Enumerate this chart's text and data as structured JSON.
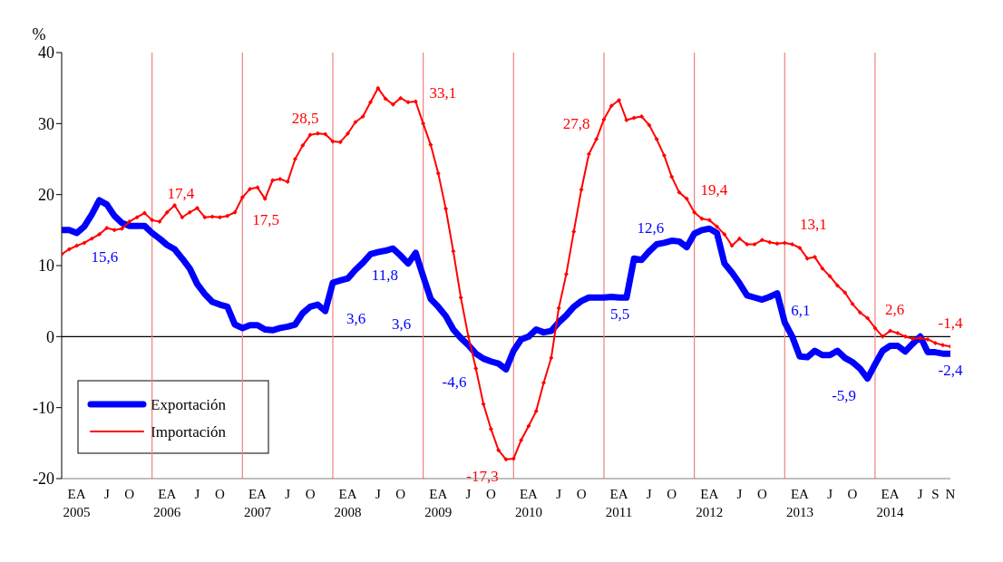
{
  "chart_data": {
    "type": "line",
    "ylabel": "%",
    "x": [
      "2005-01",
      "2005-02",
      "2005-03",
      "2005-04",
      "2005-05",
      "2005-06",
      "2005-07",
      "2005-08",
      "2005-09",
      "2005-10",
      "2005-11",
      "2005-12",
      "2006-01",
      "2006-02",
      "2006-03",
      "2006-04",
      "2006-05",
      "2006-06",
      "2006-07",
      "2006-08",
      "2006-09",
      "2006-10",
      "2006-11",
      "2006-12",
      "2007-01",
      "2007-02",
      "2007-03",
      "2007-04",
      "2007-05",
      "2007-06",
      "2007-07",
      "2007-08",
      "2007-09",
      "2007-10",
      "2007-11",
      "2007-12",
      "2008-01",
      "2008-02",
      "2008-03",
      "2008-04",
      "2008-05",
      "2008-06",
      "2008-07",
      "2008-08",
      "2008-09",
      "2008-10",
      "2008-11",
      "2008-12",
      "2009-01",
      "2009-02",
      "2009-03",
      "2009-04",
      "2009-05",
      "2009-06",
      "2009-07",
      "2009-08",
      "2009-09",
      "2009-10",
      "2009-11",
      "2009-12",
      "2010-01",
      "2010-02",
      "2010-03",
      "2010-04",
      "2010-05",
      "2010-06",
      "2010-07",
      "2010-08",
      "2010-09",
      "2010-10",
      "2010-11",
      "2010-12",
      "2011-01",
      "2011-02",
      "2011-03",
      "2011-04",
      "2011-05",
      "2011-06",
      "2011-07",
      "2011-08",
      "2011-09",
      "2011-10",
      "2011-11",
      "2011-12",
      "2012-01",
      "2012-02",
      "2012-03",
      "2012-04",
      "2012-05",
      "2012-06",
      "2012-07",
      "2012-08",
      "2012-09",
      "2012-10",
      "2012-11",
      "2012-12",
      "2013-01",
      "2013-02",
      "2013-03",
      "2013-04",
      "2013-05",
      "2013-06",
      "2013-07",
      "2013-08",
      "2013-09",
      "2013-10",
      "2013-11",
      "2013-12",
      "2014-01",
      "2014-02",
      "2014-03",
      "2014-04",
      "2014-05",
      "2014-06",
      "2014-07",
      "2014-08",
      "2014-09",
      "2014-10",
      "2014-11"
    ],
    "series": [
      {
        "name": "Exportación",
        "color": "#0000ff",
        "marker": "none",
        "values": [
          15.0,
          15.0,
          14.6,
          15.5,
          17.2,
          19.2,
          18.6,
          17.0,
          16.0,
          15.6,
          15.6,
          15.6,
          14.6,
          13.8,
          12.9,
          12.3,
          11.0,
          9.6,
          7.4,
          6.0,
          4.9,
          4.5,
          4.2,
          1.7,
          1.2,
          1.6,
          1.6,
          1.0,
          0.9,
          1.2,
          1.4,
          1.7,
          3.3,
          4.2,
          4.5,
          3.6,
          7.6,
          7.9,
          8.2,
          9.4,
          10.4,
          11.6,
          11.9,
          12.1,
          12.4,
          11.4,
          10.3,
          11.8,
          8.5,
          5.3,
          4.2,
          2.9,
          1.0,
          -0.2,
          -1.2,
          -2.4,
          -3.1,
          -3.5,
          -3.8,
          -4.6,
          -2.0,
          -0.4,
          0.0,
          1.0,
          0.6,
          0.8,
          2.0,
          3.0,
          4.2,
          5.0,
          5.5,
          5.5,
          5.5,
          5.6,
          5.5,
          5.5,
          11.0,
          10.8,
          12.0,
          13.0,
          13.2,
          13.5,
          13.4,
          12.6,
          14.5,
          15.0,
          15.2,
          14.6,
          10.3,
          9.0,
          7.5,
          5.8,
          5.5,
          5.2,
          5.6,
          6.1,
          2.0,
          0.0,
          -2.8,
          -2.9,
          -2.0,
          -2.6,
          -2.6,
          -2.0,
          -3.0,
          -3.6,
          -4.5,
          -5.9,
          -3.9,
          -2.0,
          -1.3,
          -1.3,
          -2.1,
          -1.0,
          0.0,
          -2.2,
          -2.2,
          -2.4,
          -2.4
        ]
      },
      {
        "name": "Importación",
        "color": "#ff0000",
        "marker": "diamond",
        "values": [
          11.6,
          12.3,
          12.8,
          13.2,
          13.8,
          14.4,
          15.3,
          15.0,
          15.2,
          16.2,
          16.8,
          17.4,
          16.4,
          16.2,
          17.5,
          18.5,
          16.8,
          17.5,
          18.1,
          16.8,
          16.9,
          16.8,
          17.0,
          17.5,
          19.6,
          20.8,
          21.0,
          19.4,
          22.0,
          22.2,
          21.8,
          25.0,
          26.9,
          28.4,
          28.6,
          28.5,
          27.5,
          27.4,
          28.6,
          30.2,
          31.0,
          33.0,
          35.0,
          33.5,
          32.7,
          33.6,
          33.0,
          33.1,
          30.0,
          27.0,
          23.0,
          18.0,
          12.0,
          5.5,
          0.0,
          -4.5,
          -9.5,
          -13.0,
          -16.0,
          -17.3,
          -17.2,
          -14.6,
          -12.6,
          -10.5,
          -6.5,
          -3.0,
          4.0,
          8.8,
          14.8,
          20.7,
          25.7,
          27.8,
          30.6,
          32.5,
          33.3,
          30.5,
          30.8,
          31.0,
          29.8,
          27.8,
          25.5,
          22.5,
          20.3,
          19.4,
          17.5,
          16.6,
          16.4,
          15.5,
          14.4,
          12.8,
          13.8,
          13.0,
          13.0,
          13.6,
          13.3,
          13.1,
          13.2,
          13.0,
          12.5,
          11.0,
          11.2,
          9.6,
          8.5,
          7.2,
          6.2,
          4.6,
          3.4,
          2.6,
          1.2,
          0.0,
          0.8,
          0.5,
          0.0,
          -0.3,
          -0.2,
          -0.4,
          -0.9,
          -1.2,
          -1.4
        ]
      }
    ],
    "xlim": [
      "2005-01",
      "2014-11"
    ],
    "xticks": [
      {
        "value": "2005-03",
        "label": "EA\n2005"
      },
      {
        "value": "2005-07",
        "label": "J"
      },
      {
        "value": "2005-10",
        "label": "O"
      },
      {
        "value": "2006-03",
        "label": "EA\n2006"
      },
      {
        "value": "2006-07",
        "label": "J"
      },
      {
        "value": "2006-10",
        "label": "O"
      },
      {
        "value": "2007-03",
        "label": "EA\n2007"
      },
      {
        "value": "2007-07",
        "label": "J"
      },
      {
        "value": "2007-10",
        "label": "O"
      },
      {
        "value": "2008-03",
        "label": "EA\n2008"
      },
      {
        "value": "2008-07",
        "label": "J"
      },
      {
        "value": "2008-10",
        "label": "O"
      },
      {
        "value": "2009-03",
        "label": "EA\n2009"
      },
      {
        "value": "2009-07",
        "label": "J"
      },
      {
        "value": "2009-10",
        "label": "O"
      },
      {
        "value": "2010-03",
        "label": "EA\n2010"
      },
      {
        "value": "2010-07",
        "label": "J"
      },
      {
        "value": "2010-10",
        "label": "O"
      },
      {
        "value": "2011-03",
        "label": "EA\n2011"
      },
      {
        "value": "2011-07",
        "label": "J"
      },
      {
        "value": "2011-10",
        "label": "O"
      },
      {
        "value": "2012-03",
        "label": "EA\n2012"
      },
      {
        "value": "2012-07",
        "label": "J"
      },
      {
        "value": "2012-10",
        "label": "O"
      },
      {
        "value": "2013-03",
        "label": "EA\n2013"
      },
      {
        "value": "2013-07",
        "label": "J"
      },
      {
        "value": "2013-10",
        "label": "O"
      },
      {
        "value": "2014-03",
        "label": "EA\n2014"
      },
      {
        "value": "2014-07",
        "label": "J"
      },
      {
        "value": "2014-09",
        "label": "S"
      },
      {
        "value": "2014-11",
        "label": "N"
      }
    ],
    "ylim": [
      -20,
      40
    ],
    "yticks": [
      -20,
      -10,
      0,
      10,
      20,
      30,
      40
    ],
    "ref_lines": [
      {
        "axis": "y",
        "value": 0,
        "color": "#000000"
      },
      {
        "axis": "x",
        "value": "2006-01",
        "color": "#f08080"
      },
      {
        "axis": "x",
        "value": "2007-01",
        "color": "#f08080"
      },
      {
        "axis": "x",
        "value": "2008-01",
        "color": "#f08080"
      },
      {
        "axis": "x",
        "value": "2009-01",
        "color": "#f08080"
      },
      {
        "axis": "x",
        "value": "2010-01",
        "color": "#f08080"
      },
      {
        "axis": "x",
        "value": "2011-01",
        "color": "#f08080"
      },
      {
        "axis": "x",
        "value": "2012-01",
        "color": "#f08080"
      },
      {
        "axis": "x",
        "value": "2013-01",
        "color": "#f08080"
      },
      {
        "axis": "x",
        "value": "2014-01",
        "color": "#f08080"
      }
    ],
    "annotations": [
      {
        "text": "17,4",
        "x": "2005-12",
        "y": 17.4
      },
      {
        "text": "17,5",
        "x": "2006-12",
        "y": 17.5
      },
      {
        "text": "28,5",
        "x": "2007-12",
        "y": 28.5
      },
      {
        "text": "33,1",
        "x": "2008-12",
        "y": 33.1
      },
      {
        "text": "-17,3",
        "x": "2009-12",
        "y": -17.3
      },
      {
        "text": "27,8",
        "x": "2010-12",
        "y": 27.8
      },
      {
        "text": "19,4",
        "x": "2011-12",
        "y": 19.4
      },
      {
        "text": "13,1",
        "x": "2012-12",
        "y": 13.1
      },
      {
        "text": "2,6",
        "x": "2013-12",
        "y": 2.6
      },
      {
        "text": "-1,4",
        "x": "2014-11",
        "y": -1.4
      },
      {
        "text": "15,6",
        "x": "2005-12",
        "y": 15.6
      },
      {
        "text": "3,6",
        "x": "2007-12",
        "y": 3.6
      },
      "3,6",
      {
        "text": "11,8",
        "x": "2008-12",
        "y": 11.8
      },
      {
        "text": "-4,6",
        "x": "2009-12",
        "y": -4.6
      },
      {
        "text": "5,5",
        "x": "2010-12",
        "y": 5.5
      },
      {
        "text": "12,6",
        "x": "2011-12",
        "y": 12.6
      },
      {
        "text": "6,1",
        "x": "2012-12",
        "y": 6.1
      },
      {
        "text": "-5,9",
        "x": "2013-12",
        "y": -5.9
      },
      {
        "text": "-2,4",
        "x": "2014-11",
        "y": -2.4
      }
    ],
    "legend": "bottom left"
  }
}
